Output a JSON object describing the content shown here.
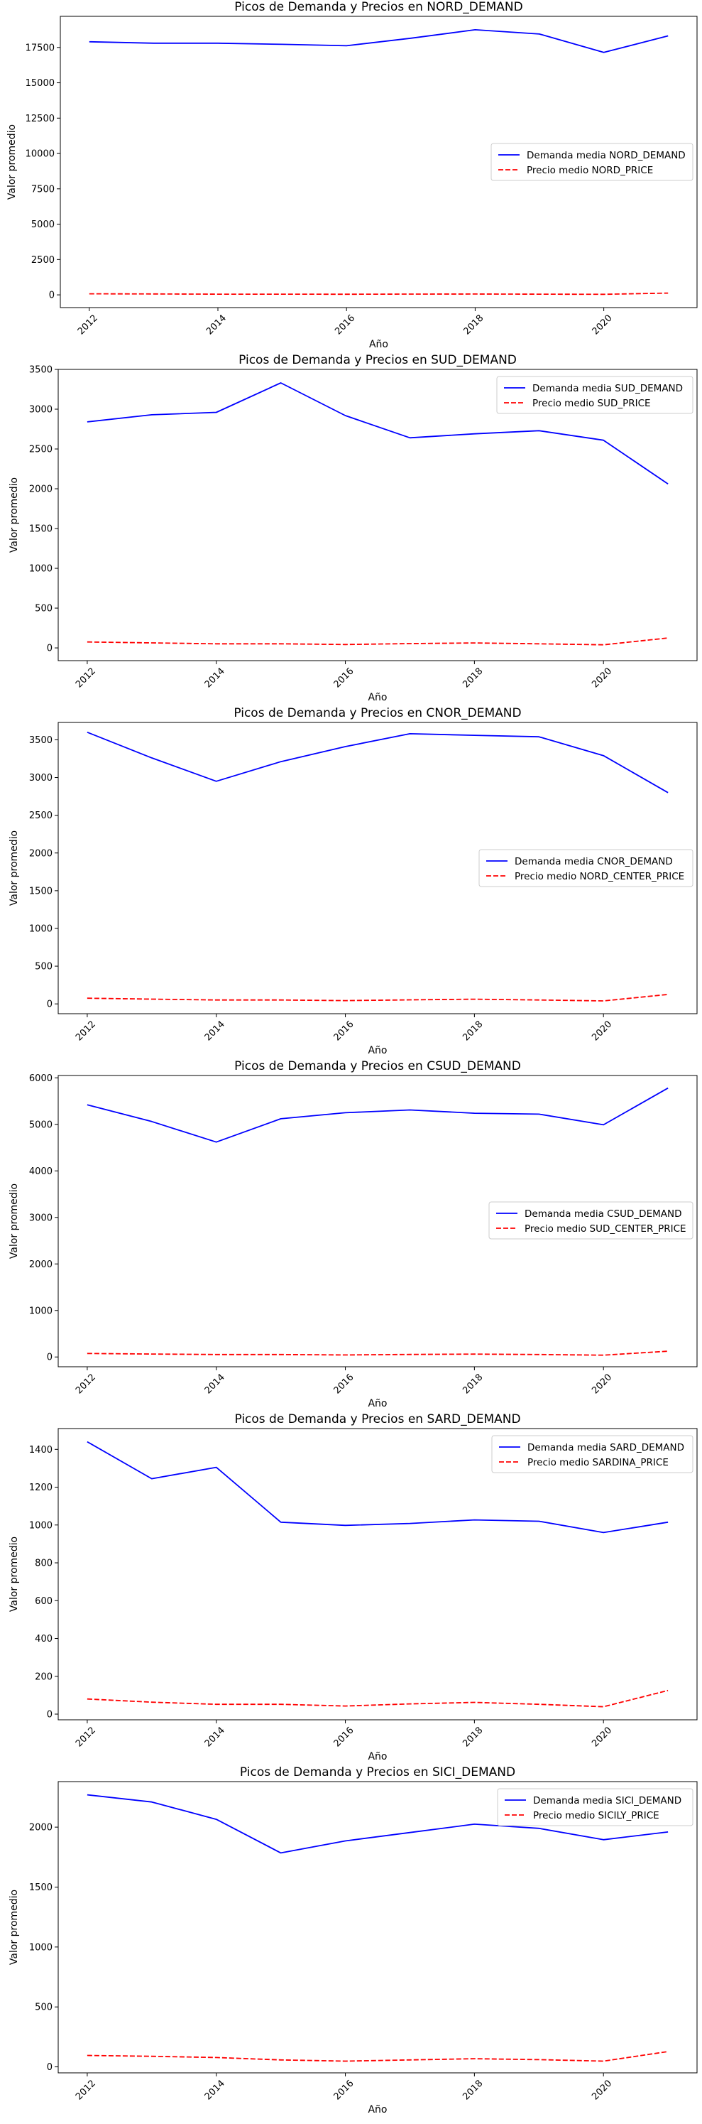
{
  "chart_data": [
    {
      "type": "line",
      "title": "Picos de Demanda y Precios en NORD_DEMAND",
      "xlabel": "Año",
      "ylabel": "Valor promedio",
      "x": [
        2012,
        2013,
        2014,
        2015,
        2016,
        2017,
        2018,
        2019,
        2020,
        2021
      ],
      "xticks": [
        "2012",
        "2014",
        "2016",
        "2018",
        "2020"
      ],
      "xlim": [
        2011.55,
        2021.45
      ],
      "ylim": [
        -900,
        19700
      ],
      "yticks": [
        "0",
        "2500",
        "5000",
        "7500",
        "10000",
        "12500",
        "15000",
        "17500"
      ],
      "legend": "center-right",
      "series": [
        {
          "name": "Demanda media NORD_DEMAND",
          "color": "#0000ff",
          "style": "solid",
          "values": [
            17900,
            17800,
            17800,
            17720,
            17620,
            18150,
            18750,
            18450,
            17150,
            18320
          ]
        },
        {
          "name": "Precio medio NORD_PRICE",
          "color": "#ff0000",
          "style": "dashed",
          "values": [
            75,
            63,
            52,
            52,
            43,
            54,
            62,
            52,
            39,
            125
          ]
        }
      ]
    },
    {
      "type": "line",
      "title": "Picos de Demanda y Precios en SUD_DEMAND",
      "xlabel": "Año",
      "ylabel": "Valor promedio",
      "x": [
        2012,
        2013,
        2014,
        2015,
        2016,
        2017,
        2018,
        2019,
        2020,
        2021
      ],
      "xticks": [
        "2012",
        "2014",
        "2016",
        "2018",
        "2020"
      ],
      "xlim": [
        2011.55,
        2021.45
      ],
      "ylim": [
        -160,
        3500
      ],
      "yticks": [
        "0",
        "500",
        "1000",
        "1500",
        "2000",
        "2500",
        "3000",
        "3500"
      ],
      "legend": "top-right",
      "series": [
        {
          "name": "Demanda media SUD_DEMAND",
          "color": "#0000ff",
          "style": "solid",
          "values": [
            2840,
            2930,
            2960,
            3330,
            2920,
            2640,
            2690,
            2730,
            2610,
            2060
          ]
        },
        {
          "name": "Precio medio SUD_PRICE",
          "color": "#ff0000",
          "style": "dashed",
          "values": [
            75,
            63,
            52,
            52,
            43,
            54,
            62,
            52,
            39,
            125
          ]
        }
      ]
    },
    {
      "type": "line",
      "title": "Picos de Demanda y Precios en CNOR_DEMAND",
      "xlabel": "Año",
      "ylabel": "Valor promedio",
      "x": [
        2012,
        2013,
        2014,
        2015,
        2016,
        2017,
        2018,
        2019,
        2020,
        2021
      ],
      "xticks": [
        "2012",
        "2014",
        "2016",
        "2018",
        "2020"
      ],
      "xlim": [
        2011.55,
        2021.45
      ],
      "ylim": [
        -130,
        3730
      ],
      "yticks": [
        "0",
        "500",
        "1000",
        "1500",
        "2000",
        "2500",
        "3000",
        "3500"
      ],
      "legend": "center-right",
      "series": [
        {
          "name": "Demanda media CNOR_DEMAND",
          "color": "#0000ff",
          "style": "solid",
          "values": [
            3600,
            3260,
            2950,
            3210,
            3410,
            3580,
            3560,
            3540,
            3290,
            2800
          ]
        },
        {
          "name": "Precio medio NORD_CENTER_PRICE",
          "color": "#ff0000",
          "style": "dashed",
          "values": [
            75,
            63,
            52,
            52,
            43,
            54,
            62,
            52,
            39,
            125
          ]
        }
      ]
    },
    {
      "type": "line",
      "title": "Picos de Demanda y Precios en CSUD_DEMAND",
      "xlabel": "Año",
      "ylabel": "Valor promedio",
      "x": [
        2012,
        2013,
        2014,
        2015,
        2016,
        2017,
        2018,
        2019,
        2020,
        2021
      ],
      "xticks": [
        "2012",
        "2014",
        "2016",
        "2018",
        "2020"
      ],
      "xlim": [
        2011.55,
        2021.45
      ],
      "ylim": [
        -210,
        6050
      ],
      "yticks": [
        "0",
        "1000",
        "2000",
        "3000",
        "4000",
        "5000",
        "6000"
      ],
      "legend": "center-right",
      "series": [
        {
          "name": "Demanda media CSUD_DEMAND",
          "color": "#0000ff",
          "style": "solid",
          "values": [
            5420,
            5060,
            4620,
            5120,
            5250,
            5310,
            5240,
            5220,
            4990,
            5780
          ]
        },
        {
          "name": "Precio medio SUD_CENTER_PRICE",
          "color": "#ff0000",
          "style": "dashed",
          "values": [
            75,
            63,
            52,
            52,
            43,
            54,
            62,
            52,
            39,
            125
          ]
        }
      ]
    },
    {
      "type": "line",
      "title": "Picos de Demanda y Precios en SARD_DEMAND",
      "xlabel": "Año",
      "ylabel": "Valor promedio",
      "x": [
        2012,
        2013,
        2014,
        2015,
        2016,
        2017,
        2018,
        2019,
        2020,
        2021
      ],
      "xticks": [
        "2012",
        "2014",
        "2016",
        "2018",
        "2020"
      ],
      "xlim": [
        2011.55,
        2021.45
      ],
      "ylim": [
        -30,
        1510
      ],
      "yticks": [
        "0",
        "200",
        "400",
        "600",
        "800",
        "1000",
        "1200",
        "1400"
      ],
      "legend": "top-right",
      "series": [
        {
          "name": "Demanda media SARD_DEMAND",
          "color": "#0000ff",
          "style": "solid",
          "values": [
            1440,
            1245,
            1305,
            1015,
            998,
            1008,
            1027,
            1020,
            960,
            1015
          ]
        },
        {
          "name": "Precio medio SARDINA_PRICE",
          "color": "#ff0000",
          "style": "dashed",
          "values": [
            80,
            63,
            52,
            52,
            43,
            54,
            62,
            52,
            39,
            125
          ]
        }
      ]
    },
    {
      "type": "line",
      "title": "Picos de Demanda y Precios en SICI_DEMAND",
      "xlabel": "Año",
      "ylabel": "Valor promedio",
      "x": [
        2012,
        2013,
        2014,
        2015,
        2016,
        2017,
        2018,
        2019,
        2020,
        2021
      ],
      "xticks": [
        "2012",
        "2014",
        "2016",
        "2018",
        "2020"
      ],
      "xlim": [
        2011.55,
        2021.45
      ],
      "ylim": [
        -50,
        2380
      ],
      "yticks": [
        "0",
        "500",
        "1000",
        "1500",
        "2000"
      ],
      "legend": "top-right",
      "series": [
        {
          "name": "Demanda media SICI_DEMAND",
          "color": "#0000ff",
          "style": "solid",
          "values": [
            2270,
            2210,
            2065,
            1785,
            1885,
            1955,
            2025,
            1990,
            1895,
            1960
          ]
        },
        {
          "name": "Precio medio SICILY_PRICE",
          "color": "#ff0000",
          "style": "dashed",
          "values": [
            95,
            88,
            78,
            58,
            48,
            58,
            68,
            60,
            48,
            128
          ]
        }
      ]
    }
  ]
}
